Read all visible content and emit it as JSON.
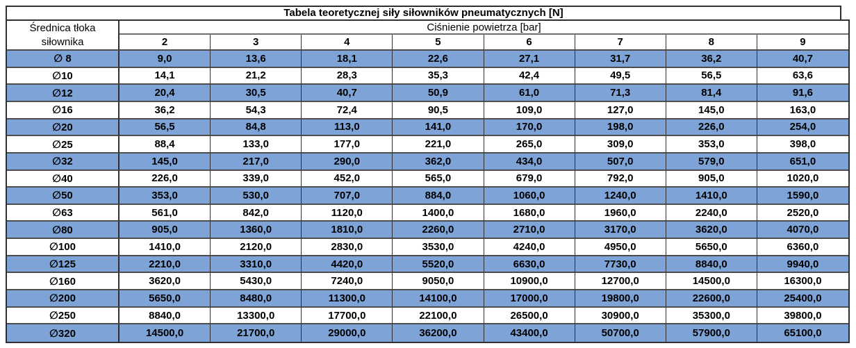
{
  "title": "Tabela teoretycznej siły siłowników pneumatycznych [N]",
  "table": {
    "row_header": {
      "line1": "Średnica tłoka",
      "line2": "siłownika"
    },
    "col_group_header": "Ciśnienie powietrza [bar]",
    "pressure_columns": [
      "2",
      "3",
      "4",
      "5",
      "6",
      "7",
      "8",
      "9"
    ],
    "rows": [
      {
        "diameter": "∅ 8",
        "values": [
          "9,0",
          "13,6",
          "18,1",
          "22,6",
          "27,1",
          "31,7",
          "36,2",
          "40,7"
        ]
      },
      {
        "diameter": "∅10",
        "values": [
          "14,1",
          "21,2",
          "28,3",
          "35,3",
          "42,4",
          "49,5",
          "56,5",
          "63,6"
        ]
      },
      {
        "diameter": "∅12",
        "values": [
          "20,4",
          "30,5",
          "40,7",
          "50,9",
          "61,0",
          "71,3",
          "81,4",
          "91,6"
        ]
      },
      {
        "diameter": "∅16",
        "values": [
          "36,2",
          "54,3",
          "72,4",
          "90,5",
          "109,0",
          "127,0",
          "145,0",
          "163,0"
        ]
      },
      {
        "diameter": "∅20",
        "values": [
          "56,5",
          "84,8",
          "113,0",
          "141,0",
          "170,0",
          "198,0",
          "226,0",
          "254,0"
        ]
      },
      {
        "diameter": "∅25",
        "values": [
          "88,4",
          "133,0",
          "177,0",
          "221,0",
          "265,0",
          "309,0",
          "353,0",
          "398,0"
        ]
      },
      {
        "diameter": "∅32",
        "values": [
          "145,0",
          "217,0",
          "290,0",
          "362,0",
          "434,0",
          "507,0",
          "579,0",
          "651,0"
        ]
      },
      {
        "diameter": "∅40",
        "values": [
          "226,0",
          "339,0",
          "452,0",
          "565,0",
          "679,0",
          "792,0",
          "905,0",
          "1020,0"
        ]
      },
      {
        "diameter": "∅50",
        "values": [
          "353,0",
          "530,0",
          "707,0",
          "884,0",
          "1060,0",
          "1240,0",
          "1410,0",
          "1590,0"
        ]
      },
      {
        "diameter": "∅63",
        "values": [
          "561,0",
          "842,0",
          "1120,0",
          "1400,0",
          "1680,0",
          "1960,0",
          "2240,0",
          "2520,0"
        ]
      },
      {
        "diameter": "∅80",
        "values": [
          "905,0",
          "1360,0",
          "1810,0",
          "2260,0",
          "2710,0",
          "3170,0",
          "3620,0",
          "4070,0"
        ]
      },
      {
        "diameter": "∅100",
        "values": [
          "1410,0",
          "2120,0",
          "2830,0",
          "3530,0",
          "4240,0",
          "4950,0",
          "5650,0",
          "6360,0"
        ]
      },
      {
        "diameter": "∅125",
        "values": [
          "2210,0",
          "3310,0",
          "4420,0",
          "5520,0",
          "6630,0",
          "7730,0",
          "8840,0",
          "9940,0"
        ]
      },
      {
        "diameter": "∅160",
        "values": [
          "3620,0",
          "5430,0",
          "7240,0",
          "9050,0",
          "10900,0",
          "12700,0",
          "14500,0",
          "16300,0"
        ]
      },
      {
        "diameter": "∅200",
        "values": [
          "5650,0",
          "8480,0",
          "11300,0",
          "14100,0",
          "17000,0",
          "19800,0",
          "22600,0",
          "25400,0"
        ]
      },
      {
        "diameter": "∅250",
        "values": [
          "8840,0",
          "13300,0",
          "17700,0",
          "22100,0",
          "26500,0",
          "30900,0",
          "35300,0",
          "39800,0"
        ]
      },
      {
        "diameter": "∅320",
        "values": [
          "14500,0",
          "21700,0",
          "29000,0",
          "36200,0",
          "43400,0",
          "50700,0",
          "57900,0",
          "65100,0"
        ]
      }
    ]
  },
  "colors": {
    "highlight_row_blue": "#7ea3d7",
    "border_dark": "#2f2f2f",
    "border_grey": "#6e6e6e",
    "text": "#000000"
  },
  "chart_data": {
    "type": "table",
    "title": "Tabela teoretycznej siły siłowników pneumatycznych [N]",
    "row_group_label": "Średnica tłoka siłownika",
    "column_group_label": "Ciśnienie powietrza [bar]",
    "pressures_bar": [
      2,
      3,
      4,
      5,
      6,
      7,
      8,
      9
    ],
    "rows": [
      {
        "diameter": "∅ 8",
        "forces_N": [
          9.0,
          13.6,
          18.1,
          22.6,
          27.1,
          31.7,
          36.2,
          40.7
        ]
      },
      {
        "diameter": "∅10",
        "forces_N": [
          14.1,
          21.2,
          28.3,
          35.3,
          42.4,
          49.5,
          56.5,
          63.6
        ]
      },
      {
        "diameter": "∅12",
        "forces_N": [
          20.4,
          30.5,
          40.7,
          50.9,
          61.0,
          71.3,
          81.4,
          91.6
        ]
      },
      {
        "diameter": "∅16",
        "forces_N": [
          36.2,
          54.3,
          72.4,
          90.5,
          109.0,
          127.0,
          145.0,
          163.0
        ]
      },
      {
        "diameter": "∅20",
        "forces_N": [
          56.5,
          84.8,
          113.0,
          141.0,
          170.0,
          198.0,
          226.0,
          254.0
        ]
      },
      {
        "diameter": "∅25",
        "forces_N": [
          88.4,
          133.0,
          177.0,
          221.0,
          265.0,
          309.0,
          353.0,
          398.0
        ]
      },
      {
        "diameter": "∅32",
        "forces_N": [
          145.0,
          217.0,
          290.0,
          362.0,
          434.0,
          507.0,
          579.0,
          651.0
        ]
      },
      {
        "diameter": "∅40",
        "forces_N": [
          226.0,
          339.0,
          452.0,
          565.0,
          679.0,
          792.0,
          905.0,
          1020.0
        ]
      },
      {
        "diameter": "∅50",
        "forces_N": [
          353.0,
          530.0,
          707.0,
          884.0,
          1060.0,
          1240.0,
          1410.0,
          1590.0
        ]
      },
      {
        "diameter": "∅63",
        "forces_N": [
          561.0,
          842.0,
          1120.0,
          1400.0,
          1680.0,
          1960.0,
          2240.0,
          2520.0
        ]
      },
      {
        "diameter": "∅80",
        "forces_N": [
          905.0,
          1360.0,
          1810.0,
          2260.0,
          2710.0,
          3170.0,
          3620.0,
          4070.0
        ]
      },
      {
        "diameter": "∅100",
        "forces_N": [
          1410.0,
          2120.0,
          2830.0,
          3530.0,
          4240.0,
          4950.0,
          5650.0,
          6360.0
        ]
      },
      {
        "diameter": "∅125",
        "forces_N": [
          2210.0,
          3310.0,
          4420.0,
          5520.0,
          6630.0,
          7730.0,
          8840.0,
          9940.0
        ]
      },
      {
        "diameter": "∅160",
        "forces_N": [
          3620.0,
          5430.0,
          7240.0,
          9050.0,
          10900.0,
          12700.0,
          14500.0,
          16300.0
        ]
      },
      {
        "diameter": "∅200",
        "forces_N": [
          5650.0,
          8480.0,
          11300.0,
          14100.0,
          17000.0,
          19800.0,
          22600.0,
          25400.0
        ]
      },
      {
        "diameter": "∅250",
        "forces_N": [
          8840.0,
          13300.0,
          17700.0,
          22100.0,
          26500.0,
          30900.0,
          35300.0,
          39800.0
        ]
      },
      {
        "diameter": "∅320",
        "forces_N": [
          14500.0,
          21700.0,
          29000.0,
          36200.0,
          43400.0,
          50700.0,
          57900.0,
          65100.0
        ]
      }
    ]
  }
}
